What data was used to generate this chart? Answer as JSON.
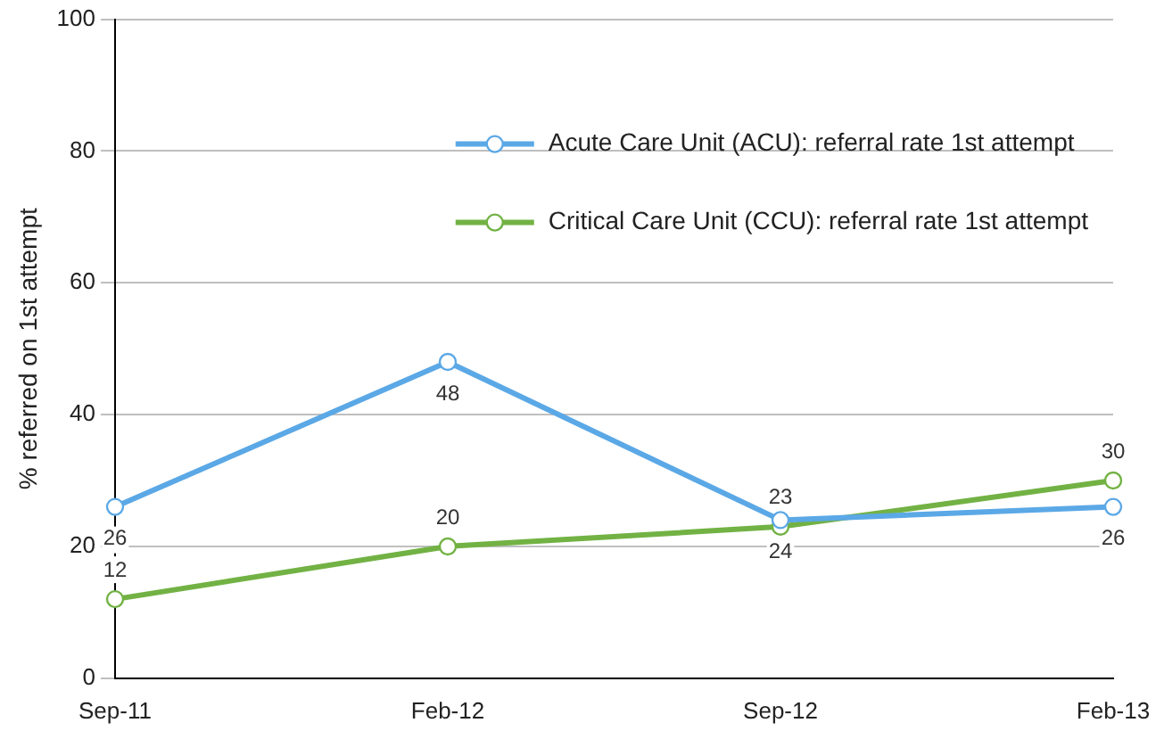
{
  "chart_data": {
    "type": "line",
    "ylabel": "% referred on 1st attempt",
    "categories": [
      "Sep-11",
      "Feb-12",
      "Sep-12",
      "Feb-13"
    ],
    "series": [
      {
        "name": "Acute Care Unit (ACU): referral rate 1st attempt",
        "color": "#5ba8e6",
        "values": [
          26,
          48,
          24,
          26
        ]
      },
      {
        "name": "Critical Care Unit (CCU): referral rate 1st attempt",
        "color": "#72b244",
        "values": [
          12,
          20,
          23,
          30
        ]
      }
    ],
    "ylim": [
      0,
      100
    ],
    "yticks": [
      0,
      20,
      40,
      60,
      80,
      100
    ],
    "grid": "y",
    "legend": "top right",
    "marker": "circle",
    "line_style": "solid",
    "data_labels": true
  }
}
